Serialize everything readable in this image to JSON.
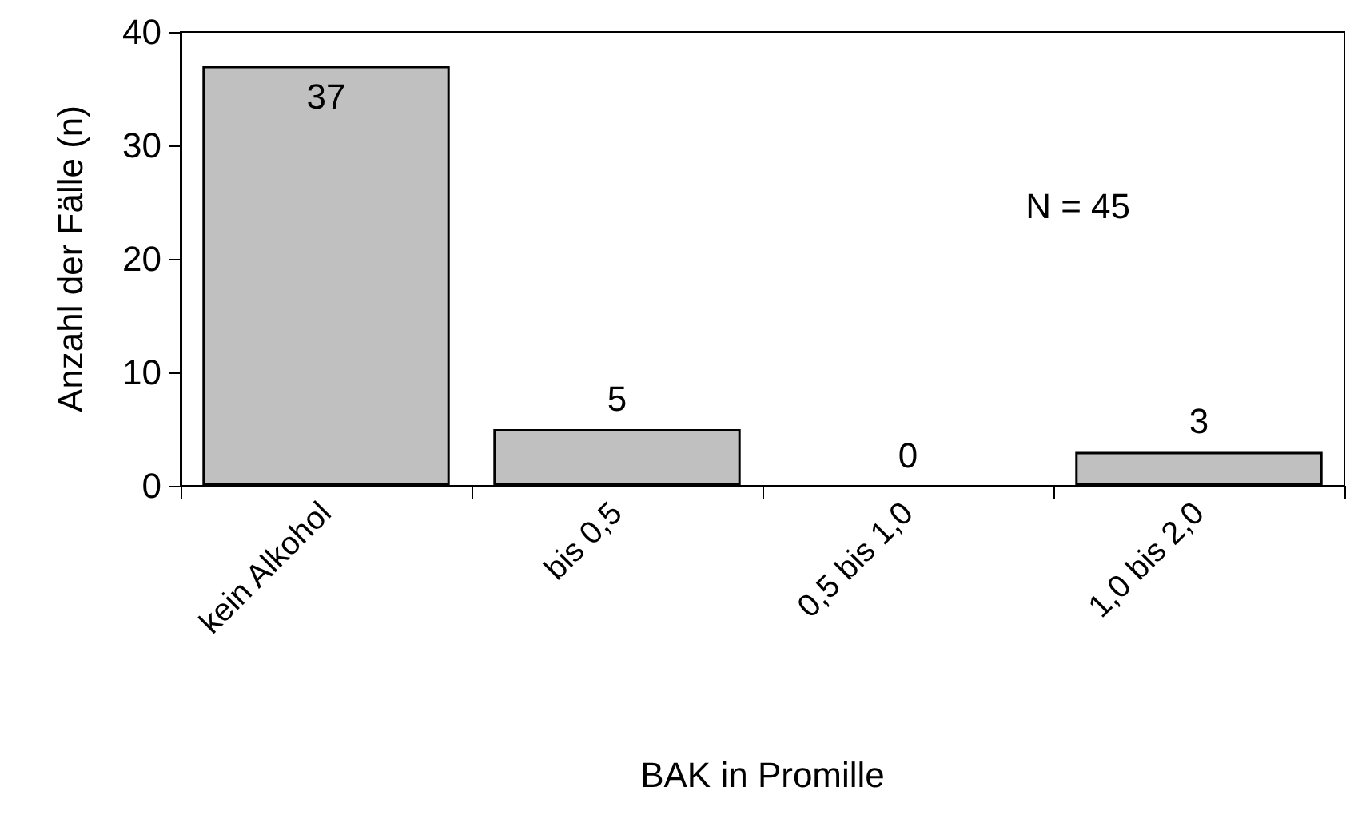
{
  "chart_data": {
    "type": "bar",
    "xlabel": "BAK in Promille",
    "ylabel": "Anzahl der Fälle (n)",
    "categories": [
      "kein Alkohol",
      "bis 0,5",
      "0,5 bis 1,0",
      "1,0 bis 2,0"
    ],
    "values": [
      37,
      5,
      0,
      3
    ],
    "color": "#c0c0c0",
    "ylim": [
      0,
      40
    ],
    "yticks": [
      0,
      10,
      20,
      30,
      40
    ],
    "grid": false,
    "data_labels": true,
    "annotations": [
      "N = 45"
    ]
  }
}
